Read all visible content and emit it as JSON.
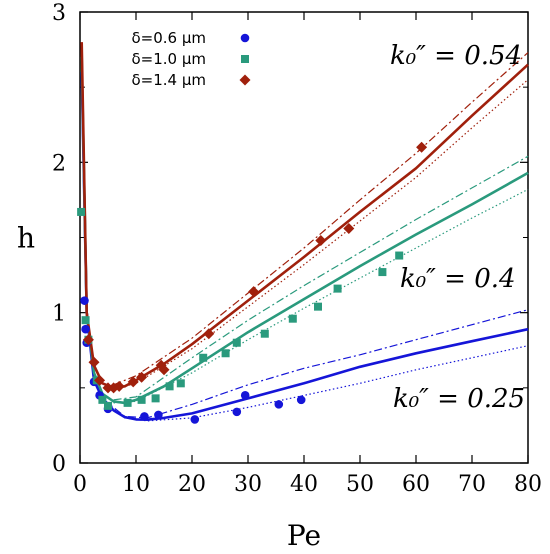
{
  "chart_data": {
    "type": "scatter",
    "xlabel": "Pe",
    "ylabel": "h",
    "xlim": [
      0,
      80
    ],
    "ylim": [
      0,
      3
    ],
    "xticks": [
      "0",
      "10",
      "20",
      "30",
      "40",
      "50",
      "60",
      "70",
      "80"
    ],
    "yticks": [
      "0",
      "1",
      "2",
      "3"
    ],
    "grid": false,
    "legend_position": "top-left",
    "legend": [
      {
        "label": "δ=0.6 μm",
        "marker": "circle",
        "color": "#1515d8"
      },
      {
        "label": "δ=1.0 μm",
        "marker": "square",
        "color": "#2a9a7d"
      },
      {
        "label": "δ=1.4 μm",
        "marker": "diamond",
        "color": "#a0200c"
      }
    ],
    "curve_labels": [
      {
        "text": "k₀″ = 0.54",
        "color": "#a0200c"
      },
      {
        "text": "k₀″ = 0.4",
        "color": "#2a9a7d"
      },
      {
        "text": "k₀″ = 0.25",
        "color": "#1515d8"
      }
    ],
    "series": [
      {
        "name": "δ=0.6 μm",
        "color": "#1515d8",
        "marker": "circle",
        "points": [
          [
            0.8,
            1.08
          ],
          [
            1.0,
            0.89
          ],
          [
            1.2,
            0.8
          ],
          [
            2.5,
            0.54
          ],
          [
            3.5,
            0.45
          ],
          [
            5.0,
            0.36
          ],
          [
            11.5,
            0.31
          ],
          [
            14.0,
            0.32
          ],
          [
            20.5,
            0.29
          ],
          [
            28.0,
            0.34
          ],
          [
            29.5,
            0.45
          ],
          [
            35.5,
            0.39
          ],
          [
            39.5,
            0.42
          ]
        ],
        "curve_solid": [
          [
            0.3,
            2.6
          ],
          [
            1.2,
            1.0
          ],
          [
            2.5,
            0.55
          ],
          [
            4,
            0.43
          ],
          [
            6,
            0.35
          ],
          [
            8,
            0.305
          ],
          [
            10,
            0.29
          ],
          [
            12,
            0.288
          ],
          [
            15,
            0.3
          ],
          [
            20,
            0.33
          ],
          [
            30,
            0.43
          ],
          [
            40,
            0.53
          ],
          [
            50,
            0.64
          ],
          [
            60,
            0.73
          ],
          [
            70,
            0.81
          ],
          [
            80,
            0.89
          ]
        ],
        "curve_dashdot": [
          [
            4,
            0.43
          ],
          [
            8,
            0.31
          ],
          [
            12,
            0.3
          ],
          [
            20,
            0.39
          ],
          [
            30,
            0.52
          ],
          [
            40,
            0.63
          ],
          [
            50,
            0.72
          ],
          [
            60,
            0.82
          ],
          [
            70,
            0.92
          ],
          [
            80,
            1.02
          ]
        ],
        "curve_dotted": [
          [
            4,
            0.42
          ],
          [
            8,
            0.3
          ],
          [
            12,
            0.28
          ],
          [
            20,
            0.3
          ],
          [
            30,
            0.37
          ],
          [
            40,
            0.45
          ],
          [
            50,
            0.53
          ],
          [
            60,
            0.62
          ],
          [
            70,
            0.7
          ],
          [
            80,
            0.78
          ]
        ]
      },
      {
        "name": "δ=1.0 μm",
        "color": "#2a9a7d",
        "marker": "square",
        "points": [
          [
            0.2,
            1.67
          ],
          [
            1.0,
            0.95
          ],
          [
            1.5,
            0.82
          ],
          [
            3.0,
            0.55
          ],
          [
            4.0,
            0.42
          ],
          [
            5.0,
            0.38
          ],
          [
            8.5,
            0.4
          ],
          [
            11.0,
            0.42
          ],
          [
            13.5,
            0.43
          ],
          [
            16.0,
            0.51
          ],
          [
            18.0,
            0.53
          ],
          [
            22.0,
            0.7
          ],
          [
            26.0,
            0.73
          ],
          [
            28.0,
            0.8
          ],
          [
            33.0,
            0.86
          ],
          [
            38.0,
            0.96
          ],
          [
            42.5,
            1.04
          ],
          [
            46.0,
            1.16
          ],
          [
            54.0,
            1.27
          ],
          [
            57.0,
            1.38
          ]
        ],
        "curve_solid": [
          [
            0.3,
            2.7
          ],
          [
            1.2,
            1.0
          ],
          [
            2.5,
            0.6
          ],
          [
            4,
            0.46
          ],
          [
            6,
            0.41
          ],
          [
            8,
            0.4
          ],
          [
            10,
            0.42
          ],
          [
            15,
            0.51
          ],
          [
            20,
            0.63
          ],
          [
            30,
            0.87
          ],
          [
            40,
            1.09
          ],
          [
            50,
            1.31
          ],
          [
            60,
            1.52
          ],
          [
            70,
            1.72
          ],
          [
            80,
            1.93
          ]
        ],
        "curve_dashdot": [
          [
            6,
            0.42
          ],
          [
            10,
            0.44
          ],
          [
            20,
            0.7
          ],
          [
            30,
            0.95
          ],
          [
            40,
            1.18
          ],
          [
            50,
            1.4
          ],
          [
            60,
            1.62
          ],
          [
            70,
            1.83
          ],
          [
            80,
            2.04
          ]
        ],
        "curve_dotted": [
          [
            6,
            0.4
          ],
          [
            10,
            0.41
          ],
          [
            20,
            0.6
          ],
          [
            30,
            0.82
          ],
          [
            40,
            1.03
          ],
          [
            50,
            1.23
          ],
          [
            60,
            1.43
          ],
          [
            70,
            1.63
          ],
          [
            80,
            1.82
          ]
        ]
      },
      {
        "name": "δ=1.4 μm",
        "color": "#a0200c",
        "marker": "diamond",
        "points": [
          [
            1.5,
            0.82
          ],
          [
            2.5,
            0.67
          ],
          [
            3.5,
            0.55
          ],
          [
            5.0,
            0.5
          ],
          [
            6.0,
            0.5
          ],
          [
            7.0,
            0.51
          ],
          [
            9.5,
            0.54
          ],
          [
            11.0,
            0.57
          ],
          [
            14.5,
            0.65
          ],
          [
            15.0,
            0.62
          ],
          [
            23.0,
            0.86
          ],
          [
            31.0,
            1.14
          ],
          [
            43.0,
            1.48
          ],
          [
            48.0,
            1.56
          ],
          [
            61.0,
            2.1
          ]
        ],
        "curve_solid": [
          [
            0.3,
            2.8
          ],
          [
            1.2,
            1.0
          ],
          [
            2.5,
            0.65
          ],
          [
            4,
            0.53
          ],
          [
            6,
            0.5
          ],
          [
            8,
            0.51
          ],
          [
            10,
            0.55
          ],
          [
            15,
            0.66
          ],
          [
            20,
            0.79
          ],
          [
            30,
            1.08
          ],
          [
            40,
            1.37
          ],
          [
            50,
            1.67
          ],
          [
            60,
            1.96
          ],
          [
            70,
            2.31
          ],
          [
            80,
            2.65
          ]
        ],
        "curve_dashdot": [
          [
            6,
            0.52
          ],
          [
            10,
            0.58
          ],
          [
            20,
            0.83
          ],
          [
            30,
            1.13
          ],
          [
            40,
            1.43
          ],
          [
            50,
            1.75
          ],
          [
            60,
            2.06
          ],
          [
            70,
            2.4
          ],
          [
            80,
            2.73
          ]
        ],
        "curve_dotted": [
          [
            6,
            0.49
          ],
          [
            10,
            0.53
          ],
          [
            20,
            0.76
          ],
          [
            30,
            1.04
          ],
          [
            40,
            1.32
          ],
          [
            50,
            1.61
          ],
          [
            60,
            1.9
          ],
          [
            70,
            2.23
          ],
          [
            80,
            2.55
          ]
        ]
      }
    ]
  }
}
